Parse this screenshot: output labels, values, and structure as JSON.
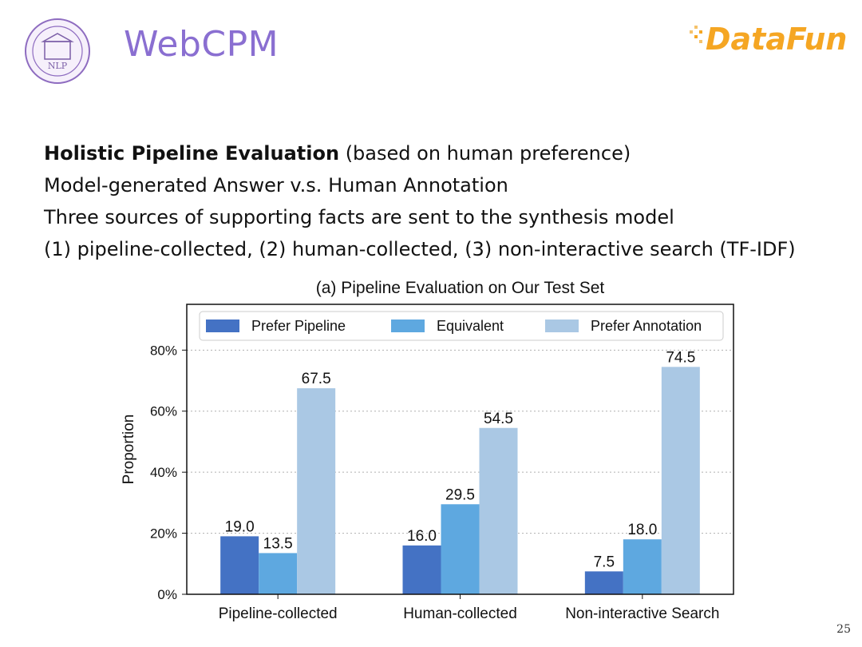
{
  "slide": {
    "title": "WebCPM",
    "left_logo_text": "NLP",
    "right_logo_text": "DataFun.",
    "lines": [
      {
        "bold": "Holistic Pipeline Evaluation",
        "rest": " (based on human preference)"
      },
      {
        "bold": "",
        "rest": "Model-generated Answer  v.s. Human Annotation"
      },
      {
        "bold": "",
        "rest": "Three sources of supporting facts are sent to the synthesis model"
      },
      {
        "bold": "",
        "rest": "(1) pipeline-collected, (2) human-collected, (3) non-interactive search (TF-IDF)"
      }
    ],
    "page_number": "25",
    "colors": {
      "title": "#8a6fd1",
      "logo_orange": "#f5a623",
      "logo_purple": "#7b5ea7"
    }
  },
  "chart_data": {
    "type": "bar",
    "title": "(a) Pipeline Evaluation on Our Test Set",
    "xlabel": "",
    "ylabel": "Proportion",
    "categories": [
      "Pipeline-collected",
      "Human-collected",
      "Non-interactive Search"
    ],
    "series": [
      {
        "name": "Prefer Pipeline",
        "values": [
          19.0,
          16.0,
          7.5
        ],
        "color": "#4472c4"
      },
      {
        "name": "Equivalent",
        "values": [
          13.5,
          29.5,
          18.0
        ],
        "color": "#5ea8e0"
      },
      {
        "name": "Prefer Annotation",
        "values": [
          67.5,
          54.5,
          74.5
        ],
        "color": "#aac8e4"
      }
    ],
    "data_labels": [
      [
        "19.0",
        "16.0",
        "7.5"
      ],
      [
        "13.5",
        "29.5",
        "18.0"
      ],
      [
        "67.5",
        "54.5",
        "74.5"
      ]
    ],
    "yticks": [
      "0%",
      "20%",
      "40%",
      "60%",
      "80%"
    ],
    "ytick_values": [
      0,
      20,
      40,
      60,
      80
    ],
    "ylim": [
      0,
      95
    ],
    "grid": true,
    "legend": "top"
  }
}
